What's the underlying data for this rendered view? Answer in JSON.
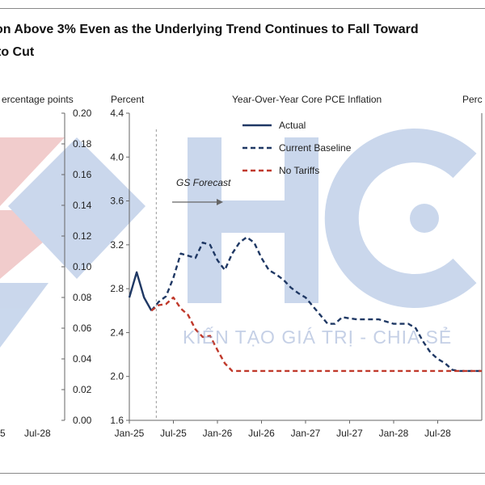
{
  "title": {
    "line1": "on Above 3% Even as the Underlying Trend Continues to Fall Toward",
    "line2": "to Cut"
  },
  "watermark": {
    "text": "KIẾN TẠO GIÁ TRỊ - CHIA SẺ"
  },
  "colors": {
    "actual": "#1f3864",
    "baseline": "#1f3864",
    "no_tariffs": "#c0392b",
    "watermark_blue": "#9fb8de",
    "watermark_red": "#e7a3a3"
  },
  "left_panel": {
    "axis_label": "ercentage points",
    "ticks": [
      "0.00",
      "0.02",
      "0.04",
      "0.06",
      "0.08",
      "0.10",
      "0.12",
      "0.14",
      "0.16",
      "0.18",
      "0.20"
    ],
    "x_ticks": [
      "5",
      "Jul-28"
    ]
  },
  "chart_data": {
    "type": "line",
    "title": "Year-Over-Year  Core PCE  Inflation",
    "ylabel_left": "Percent",
    "ylabel_right": "Perc",
    "ylim": [
      1.6,
      4.4
    ],
    "y_ticks": [
      "1.6",
      "2.0",
      "2.4",
      "2.8",
      "3.2",
      "3.6",
      "4.0",
      "4.4"
    ],
    "x_ticks": [
      "Jan-25",
      "Jul-25",
      "Jan-26",
      "Jul-26",
      "Jan-27",
      "Jul-27",
      "Jan-28",
      "Jul-28"
    ],
    "x_range": [
      "2025-01",
      "2029-01"
    ],
    "annotation": "GS Forecast",
    "forecast_start": "2025-05",
    "legend_position": "top",
    "series": [
      {
        "name": "Actual",
        "style": "solid",
        "color": "#1f3864",
        "x": [
          "2025-01",
          "2025-02",
          "2025-03",
          "2025-04"
        ],
        "values": [
          2.72,
          2.95,
          2.72,
          2.6
        ]
      },
      {
        "name": "Current Baseline",
        "style": "dashed",
        "color": "#1f3864",
        "x": [
          "2025-04",
          "2025-05",
          "2025-06",
          "2025-07",
          "2025-08",
          "2025-09",
          "2025-10",
          "2025-11",
          "2025-12",
          "2026-01",
          "2026-02",
          "2026-03",
          "2026-04",
          "2026-05",
          "2026-06",
          "2026-07",
          "2026-08",
          "2026-09",
          "2026-10",
          "2026-11",
          "2026-12",
          "2027-01",
          "2027-02",
          "2027-03",
          "2027-04",
          "2027-05",
          "2027-06",
          "2027-07",
          "2027-08",
          "2027-09",
          "2027-10",
          "2027-11",
          "2027-12",
          "2028-01",
          "2028-02",
          "2028-03",
          "2028-04",
          "2028-05",
          "2028-06",
          "2028-07",
          "2028-08",
          "2028-09",
          "2028-10",
          "2028-11",
          "2028-12",
          "2029-01"
        ],
        "values": [
          2.6,
          2.68,
          2.73,
          2.9,
          3.12,
          3.1,
          3.08,
          3.22,
          3.2,
          3.06,
          2.97,
          3.12,
          3.22,
          3.27,
          3.22,
          3.08,
          2.97,
          2.93,
          2.88,
          2.81,
          2.76,
          2.72,
          2.64,
          2.56,
          2.48,
          2.48,
          2.54,
          2.53,
          2.52,
          2.52,
          2.52,
          2.52,
          2.5,
          2.48,
          2.48,
          2.48,
          2.44,
          2.32,
          2.22,
          2.16,
          2.12,
          2.06,
          2.05,
          2.05,
          2.05,
          2.05
        ]
      },
      {
        "name": "No Tariffs",
        "style": "dashed",
        "color": "#c0392b",
        "x": [
          "2025-04",
          "2025-05",
          "2025-06",
          "2025-07",
          "2025-08",
          "2025-09",
          "2025-10",
          "2025-11",
          "2025-12",
          "2026-01",
          "2026-02",
          "2026-03",
          "2026-06",
          "2026-09",
          "2026-12",
          "2027-06",
          "2027-12",
          "2028-06",
          "2028-12",
          "2029-01"
        ],
        "values": [
          2.6,
          2.65,
          2.66,
          2.72,
          2.62,
          2.56,
          2.43,
          2.36,
          2.37,
          2.24,
          2.12,
          2.05,
          2.05,
          2.05,
          2.05,
          2.05,
          2.05,
          2.05,
          2.05,
          2.05
        ]
      }
    ]
  }
}
